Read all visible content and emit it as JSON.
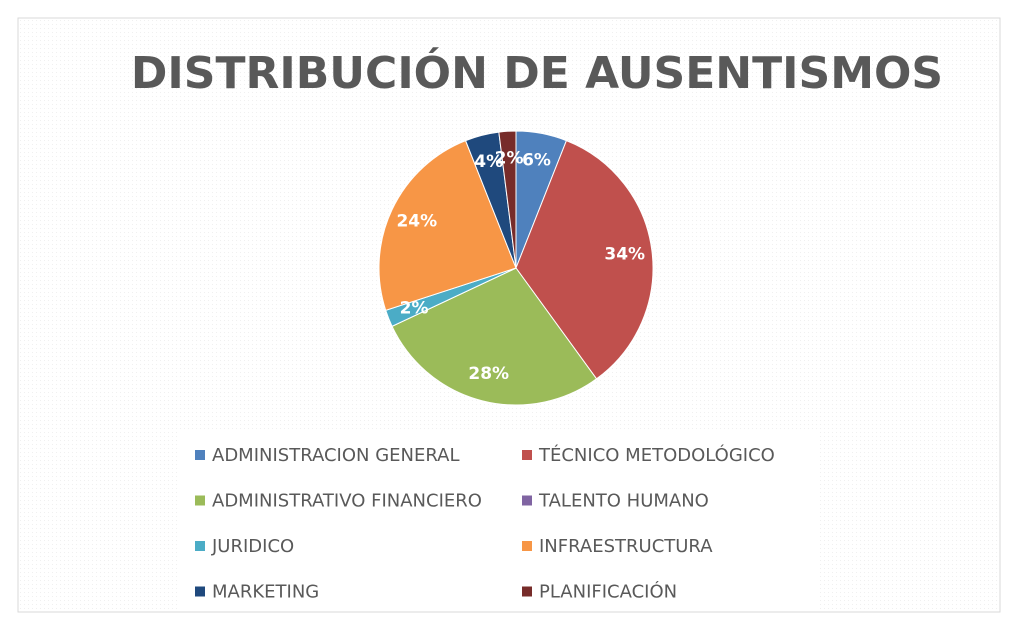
{
  "chart_data": {
    "type": "pie",
    "title": "DISTRIBUCIÓN DE AUSENTISMOS",
    "categories": [
      "ADMINISTRACION GENERAL",
      "TÉCNICO METODOLÓGICO",
      "ADMINISTRATIVO FINANCIERO",
      "TALENTO HUMANO",
      "JURIDICO",
      "INFRAESTRUCTURA",
      "MARKETING",
      "PLANIFICACIÓN"
    ],
    "values": [
      6,
      34,
      28,
      0,
      2,
      24,
      4,
      2
    ],
    "value_labels": [
      "6%",
      "34%",
      "28%",
      null,
      "2%",
      "24%",
      "4%",
      "2%"
    ],
    "colors": [
      "#4f81bd",
      "#c0504d",
      "#9bbb59",
      "#8064a2",
      "#4bacc6",
      "#f79646",
      "#1f497d",
      "#772c2a"
    ],
    "legend": "bottom"
  }
}
